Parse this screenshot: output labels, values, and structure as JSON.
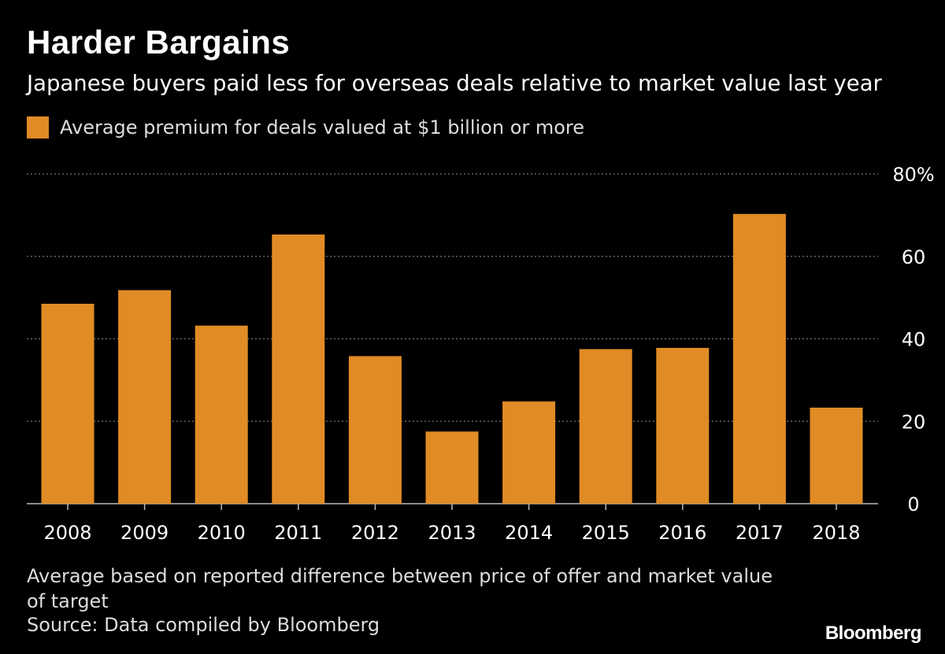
{
  "header": {
    "title": "Harder Bargains",
    "subtitle": "Japanese buyers paid less for overseas deals relative to market value last year"
  },
  "legend": {
    "label": "Average premium for deals valued at $1 billion or more",
    "color": "#e08b25"
  },
  "footer": {
    "note": "Average based on reported difference between price of offer and market value of target",
    "source": "Source: Data compiled by Bloomberg",
    "brand": "Bloomberg"
  },
  "chart_data": {
    "type": "bar",
    "title": "Harder Bargains",
    "subtitle": "Japanese buyers paid less for overseas deals relative to market value last year",
    "categories": [
      "2008",
      "2009",
      "2010",
      "2011",
      "2012",
      "2013",
      "2014",
      "2015",
      "2016",
      "2017",
      "2018"
    ],
    "series": [
      {
        "name": "Average premium for deals valued at $1 billion or more",
        "values": [
          48.5,
          51.8,
          43.2,
          65.3,
          35.8,
          17.5,
          24.8,
          37.5,
          37.8,
          70.3,
          23.3
        ]
      }
    ],
    "ylim": [
      0,
      80
    ],
    "yticks": [
      0,
      20,
      40,
      60,
      80
    ],
    "ytick_labels": [
      "0",
      "20",
      "40",
      "60",
      "80%"
    ],
    "xlabel": "",
    "ylabel": "",
    "grid": true,
    "legend_position": "top-left",
    "bar_color": "#e08b25",
    "grid_color": "#777777"
  }
}
